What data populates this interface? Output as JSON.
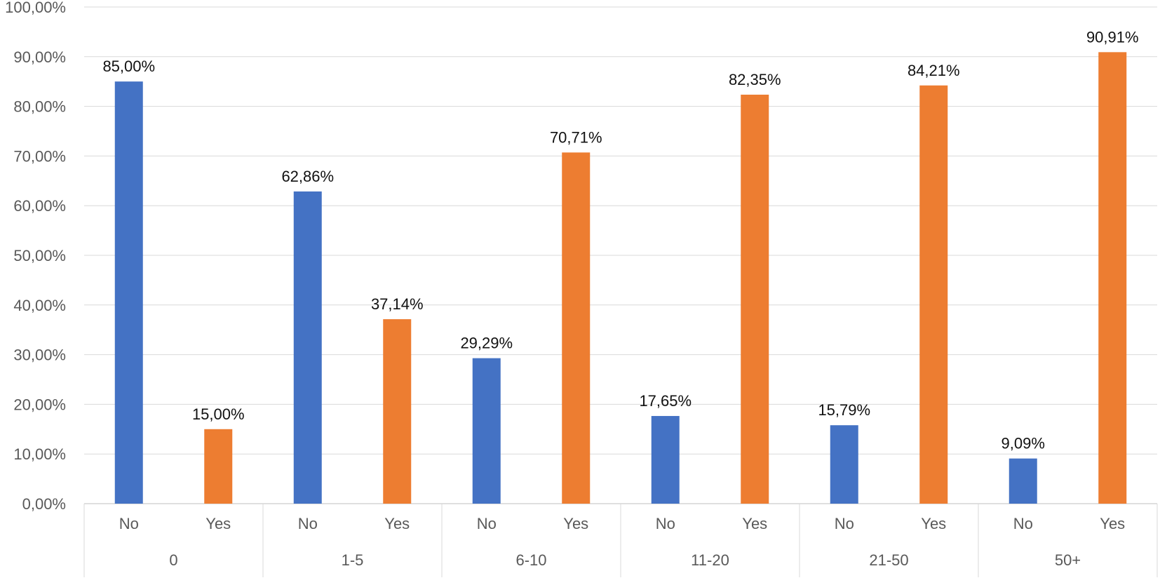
{
  "chart_data": {
    "type": "bar",
    "title": "",
    "xlabel": "",
    "ylabel": "",
    "ylim": [
      0,
      100
    ],
    "yticks": [
      "0,00%",
      "10,00%",
      "20,00%",
      "30,00%",
      "40,00%",
      "50,00%",
      "60,00%",
      "70,00%",
      "80,00%",
      "90,00%",
      "100,00%"
    ],
    "grid": true,
    "legend": "none",
    "groups": [
      "0",
      "1-5",
      "6-10",
      "11-20",
      "21-50",
      "50+"
    ],
    "subcategories": [
      "No",
      "Yes"
    ],
    "series": [
      {
        "color": "#4472C4",
        "values": [
          85.0,
          62.86,
          29.29,
          17.65,
          15.79,
          9.09
        ],
        "labels": [
          "85,00%",
          "62,86%",
          "29,29%",
          "17,65%",
          "15,79%",
          "9,09%"
        ]
      },
      {
        "color": "#ED7D31",
        "values": [
          15.0,
          37.14,
          70.71,
          82.35,
          84.21,
          90.91
        ],
        "labels": [
          "15,00%",
          "37,14%",
          "70,71%",
          "82,35%",
          "84,21%",
          "90,91%"
        ]
      }
    ]
  }
}
